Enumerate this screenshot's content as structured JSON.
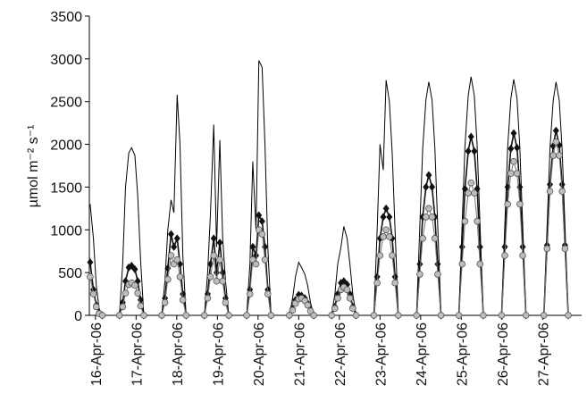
{
  "chart_data": {
    "type": "line",
    "ylabel": "µmol m⁻² s⁻¹",
    "xlim": [
      15.85,
      27.96
    ],
    "xticks": [
      {
        "value": 16,
        "label": "16-Apr-06"
      },
      {
        "value": 17,
        "label": "17-Apr-06"
      },
      {
        "value": 18,
        "label": "18-Apr-06"
      },
      {
        "value": 19,
        "label": "19-Apr-06"
      },
      {
        "value": 20,
        "label": "20-Apr-06"
      },
      {
        "value": 21,
        "label": "21-Apr-06"
      },
      {
        "value": 22,
        "label": "22-Apr-06"
      },
      {
        "value": 23,
        "label": "23-Apr-06"
      },
      {
        "value": 24,
        "label": "24-Apr-06"
      },
      {
        "value": 25,
        "label": "25-Apr-06"
      },
      {
        "value": 26,
        "label": "26-Apr-06"
      },
      {
        "value": 27,
        "label": "27-Apr-06"
      }
    ],
    "ylim": [
      0,
      3500
    ],
    "yticks": [
      0,
      500,
      1000,
      1500,
      2000,
      2500,
      3000,
      3500
    ],
    "grid": false,
    "x": [
      15.87,
      15.95,
      16.02,
      16.09,
      16.17,
      16.59,
      16.67,
      16.74,
      16.82,
      16.89,
      16.97,
      17.04,
      17.11,
      17.19,
      17.63,
      17.71,
      17.78,
      17.86,
      17.93,
      18.01,
      18.08,
      18.15,
      18.23,
      18.68,
      18.76,
      18.83,
      18.91,
      18.98,
      19.06,
      19.13,
      19.2,
      19.28,
      19.72,
      19.8,
      19.87,
      19.95,
      20.02,
      20.1,
      20.17,
      20.24,
      20.32,
      20.77,
      20.85,
      20.92,
      21.0,
      21.07,
      21.15,
      21.22,
      21.29,
      21.37,
      21.81,
      21.89,
      21.96,
      22.04,
      22.11,
      22.19,
      22.26,
      22.33,
      22.41,
      22.85,
      22.93,
      23.0,
      23.08,
      23.15,
      23.23,
      23.3,
      23.37,
      23.45,
      23.9,
      23.98,
      24.05,
      24.13,
      24.2,
      24.28,
      24.35,
      24.42,
      24.5,
      24.94,
      25.02,
      25.09,
      25.17,
      25.24,
      25.32,
      25.39,
      25.46,
      25.54,
      25.99,
      26.07,
      26.14,
      26.22,
      26.29,
      26.37,
      26.44,
      26.51,
      26.59,
      27.03,
      27.11,
      27.18,
      27.26,
      27.33,
      27.41,
      27.48,
      27.55,
      27.63
    ],
    "series": [
      {
        "color": "#000000",
        "marker": "none",
        "values": [
          1300,
          900,
          350,
          80,
          0,
          0,
          600,
          1500,
          1900,
          1960,
          1870,
          1400,
          650,
          0,
          0,
          400,
          1000,
          1350,
          1200,
          2580,
          2000,
          700,
          0,
          0,
          500,
          1200,
          2230,
          800,
          2050,
          900,
          400,
          0,
          0,
          600,
          1800,
          1000,
          2980,
          2900,
          2000,
          800,
          0,
          0,
          200,
          450,
          620,
          560,
          480,
          350,
          150,
          0,
          0,
          250,
          600,
          800,
          1040,
          900,
          600,
          250,
          0,
          0,
          1000,
          2000,
          1700,
          2750,
          2500,
          1900,
          1000,
          0,
          0,
          1050,
          1950,
          2520,
          2730,
          2520,
          1950,
          1050,
          0,
          0,
          1060,
          1980,
          2570,
          2790,
          2570,
          1980,
          1060,
          0,
          0,
          1050,
          1960,
          2540,
          2760,
          2540,
          1960,
          1050,
          0,
          0,
          1040,
          1940,
          2510,
          2730,
          2510,
          1940,
          1040,
          0
        ]
      },
      {
        "color": "#111111",
        "marker": "diamond",
        "values": [
          620,
          300,
          120,
          30,
          0,
          0,
          150,
          400,
          560,
          580,
          540,
          400,
          180,
          0,
          0,
          200,
          550,
          950,
          800,
          900,
          600,
          250,
          0,
          0,
          250,
          600,
          900,
          500,
          850,
          500,
          200,
          0,
          0,
          300,
          800,
          700,
          1170,
          1100,
          800,
          300,
          0,
          0,
          80,
          180,
          240,
          230,
          200,
          140,
          60,
          0,
          0,
          100,
          250,
          380,
          400,
          360,
          250,
          100,
          0,
          0,
          450,
          900,
          1150,
          1250,
          1150,
          900,
          450,
          0,
          0,
          600,
          1150,
          1500,
          1640,
          1500,
          1150,
          600,
          0,
          0,
          800,
          1480,
          1920,
          2090,
          1920,
          1480,
          800,
          0,
          0,
          800,
          1500,
          1950,
          2130,
          1960,
          1500,
          800,
          0,
          0,
          820,
          1530,
          1980,
          2160,
          1990,
          1530,
          820,
          0
        ]
      },
      {
        "color": "#bdbdbd",
        "marker": "circle",
        "values": [
          450,
          250,
          100,
          20,
          0,
          0,
          100,
          260,
          360,
          380,
          350,
          260,
          110,
          0,
          0,
          150,
          420,
          700,
          600,
          650,
          450,
          180,
          0,
          0,
          200,
          450,
          700,
          400,
          650,
          400,
          150,
          0,
          0,
          250,
          650,
          600,
          1000,
          950,
          650,
          250,
          0,
          0,
          60,
          140,
          190,
          200,
          170,
          120,
          50,
          0,
          0,
          80,
          200,
          300,
          330,
          300,
          200,
          80,
          0,
          0,
          380,
          700,
          920,
          1000,
          920,
          700,
          380,
          0,
          0,
          480,
          900,
          1150,
          1250,
          1150,
          900,
          480,
          0,
          0,
          600,
          1100,
          1430,
          1550,
          1430,
          1100,
          600,
          0,
          0,
          700,
          1300,
          1660,
          1800,
          1660,
          1300,
          700,
          0,
          0,
          780,
          1450,
          1870,
          2030,
          1870,
          1450,
          780,
          0
        ]
      }
    ]
  }
}
